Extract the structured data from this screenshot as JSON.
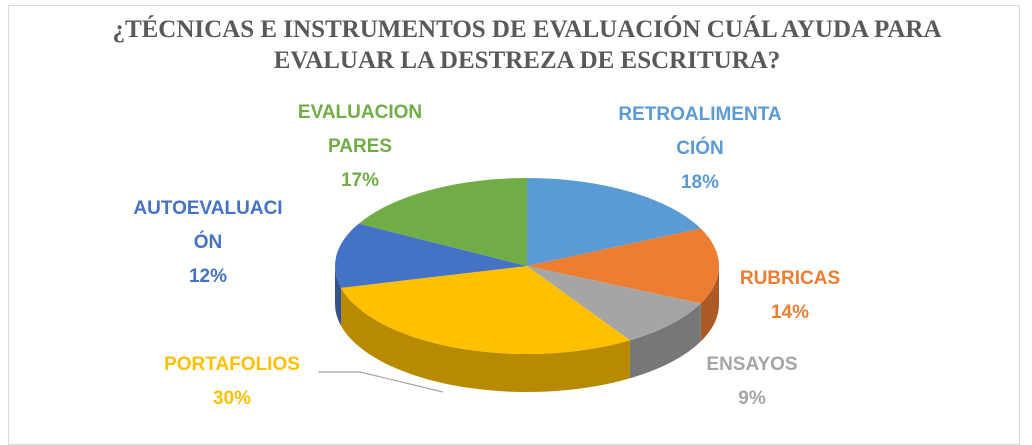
{
  "chart_data": {
    "type": "pie",
    "title": "¿TÉCNICAS E INSTRUMENTOS DE EVALUACIÓN CUÁL AYUDA PARA EVALUAR LA DESTREZA DE ESCRITURA?",
    "categories": [
      "RETROALIMENTACIÓN",
      "RUBRICAS",
      "ENSAYOS",
      "PORTAFOLIOS",
      "AUTOEVALUACIÓN",
      "EVALUACION PARES"
    ],
    "values": [
      18,
      14,
      9,
      30,
      12,
      17
    ],
    "value_labels": [
      "18%",
      "14%",
      "9%",
      "30%",
      "12%",
      "17%"
    ],
    "colors": [
      "#5b9bd5",
      "#ed7d31",
      "#a5a5a5",
      "#ffc000",
      "#4472c4",
      "#70ad47"
    ]
  }
}
